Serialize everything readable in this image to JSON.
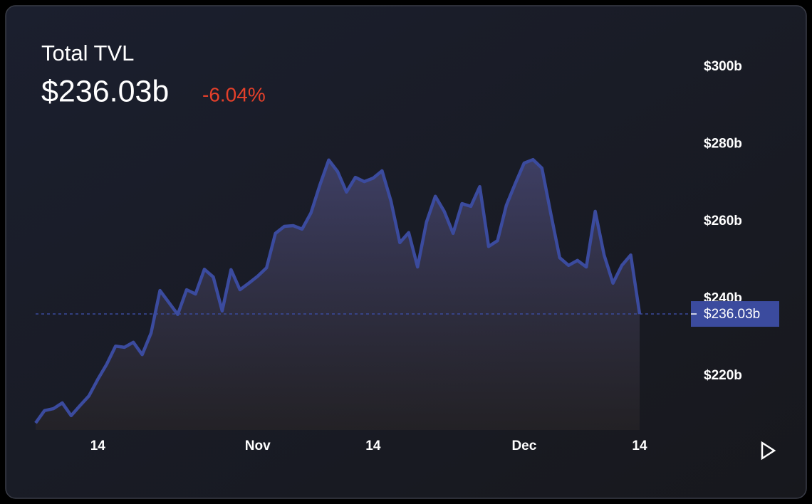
{
  "chart_data": {
    "type": "line",
    "title": "Total TVL",
    "change": "-6.04%",
    "categories": [
      null,
      null,
      null,
      null,
      null,
      null,
      null,
      "14",
      null,
      null,
      null,
      null,
      null,
      null,
      null,
      null,
      null,
      null,
      null,
      null,
      null,
      null,
      null,
      null,
      null,
      "Nov",
      null,
      null,
      null,
      null,
      null,
      null,
      null,
      null,
      null,
      null,
      null,
      null,
      "14",
      null,
      null,
      null,
      null,
      null,
      null,
      null,
      null,
      null,
      null,
      null,
      null,
      null,
      null,
      null,
      null,
      "Dec",
      null,
      null,
      null,
      null,
      null,
      null,
      null,
      null,
      null,
      null,
      null,
      null,
      "14"
    ],
    "values": [
      207.8,
      211.0,
      211.5,
      213.0,
      209.7,
      212.3,
      214.8,
      219.1,
      223.0,
      227.7,
      227.4,
      228.7,
      225.5,
      231.1,
      242.1,
      239.0,
      235.9,
      242.3,
      241.2,
      247.6,
      245.6,
      236.8,
      247.5,
      242.3,
      244.0,
      245.8,
      248.0,
      256.9,
      258.7,
      258.9,
      258.0,
      262.2,
      269.4,
      275.9,
      272.9,
      267.6,
      271.4,
      270.3,
      271.2,
      273.1,
      265.3,
      254.5,
      257.1,
      248.2,
      259.8,
      266.5,
      262.6,
      256.9,
      264.6,
      263.9,
      269.0,
      253.5,
      255.0,
      264.2,
      269.8,
      275.1,
      276.0,
      273.8,
      262.0,
      250.6,
      248.6,
      249.9,
      248.2,
      262.6,
      251.3,
      244.0,
      248.6,
      251.3,
      236.03
    ],
    "value_labels": [
      null,
      null,
      null,
      null,
      null,
      null,
      null,
      null,
      null,
      null,
      null,
      null,
      null,
      null,
      null,
      null,
      null,
      null,
      null,
      null,
      null,
      null,
      null,
      null,
      null,
      null,
      null,
      null,
      null,
      null,
      null,
      null,
      null,
      null,
      null,
      null,
      null,
      null,
      null,
      null,
      null,
      null,
      null,
      null,
      null,
      null,
      null,
      null,
      null,
      null,
      null,
      null,
      null,
      null,
      null,
      null,
      null,
      null,
      null,
      null,
      null,
      null,
      null,
      null,
      null,
      null,
      null,
      null,
      "$236.03b"
    ],
    "color": "#3b4b9e",
    "grid": false,
    "ylim": [
      206,
      312
    ],
    "yticks": [
      {
        "value": 220,
        "label": "$220b"
      },
      {
        "value": 240,
        "label": "$240b"
      },
      {
        "value": 260,
        "label": "$260b"
      },
      {
        "value": 280,
        "label": "$280b"
      },
      {
        "value": 300,
        "label": "$300b"
      }
    ]
  }
}
